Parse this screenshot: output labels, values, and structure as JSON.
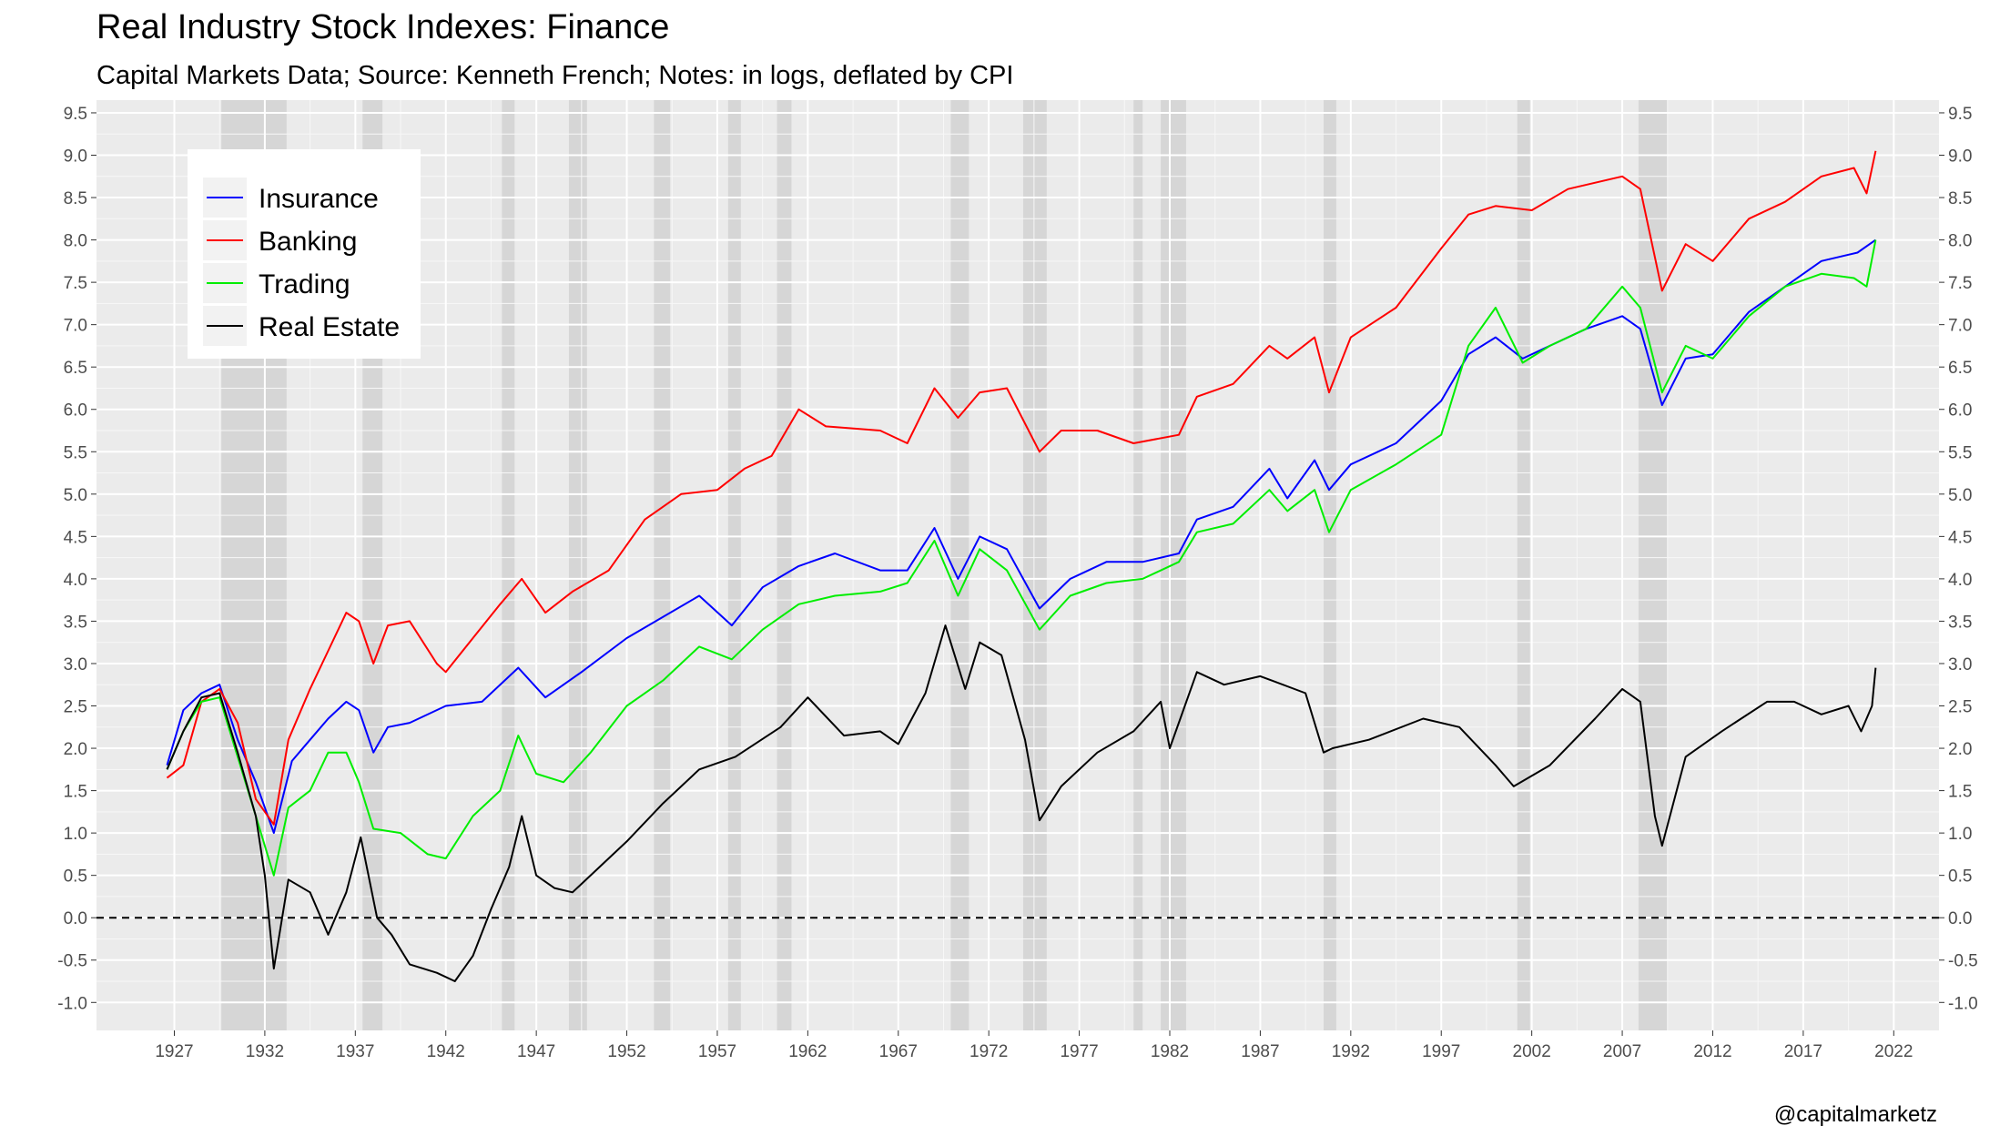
{
  "chart_data": {
    "type": "line",
    "title": "Real Industry Stock Indexes: Finance",
    "subtitle": "Capital Markets Data; Source: Kenneth French; Notes: in logs, deflated by CPI",
    "credit": "@capitalmarketz",
    "xlabel": "",
    "ylabel": "",
    "xlim": [
      1922.7,
      2024.5
    ],
    "ylim": [
      -1.33,
      9.65
    ],
    "x_ticks": [
      "1927",
      "1932",
      "1937",
      "1942",
      "1947",
      "1952",
      "1957",
      "1962",
      "1967",
      "1972",
      "1977",
      "1982",
      "1987",
      "1992",
      "1997",
      "2002",
      "2007",
      "2012",
      "2017",
      "2022"
    ],
    "y_ticks": [
      "-1.0",
      "-0.5",
      "0.0",
      "0.5",
      "1.0",
      "1.5",
      "2.0",
      "2.5",
      "3.0",
      "3.5",
      "4.0",
      "4.5",
      "5.0",
      "5.5",
      "6.0",
      "6.5",
      "7.0",
      "7.5",
      "8.0",
      "8.5",
      "9.0",
      "9.5"
    ],
    "grid": true,
    "y_axis_both_sides": true,
    "reference_line": {
      "y": 0.0,
      "style": "dashed",
      "color": "#000000"
    },
    "recession_shading": [
      [
        1929.6,
        1933.2
      ],
      [
        1937.4,
        1938.5
      ],
      [
        1945.1,
        1945.8
      ],
      [
        1948.8,
        1949.8
      ],
      [
        1953.5,
        1954.4
      ],
      [
        1957.6,
        1958.3
      ],
      [
        1960.3,
        1961.1
      ],
      [
        1969.9,
        1970.9
      ],
      [
        1973.9,
        1975.2
      ],
      [
        1980.0,
        1980.5
      ],
      [
        1981.5,
        1982.9
      ],
      [
        1990.5,
        1991.2
      ],
      [
        2001.2,
        2001.9
      ],
      [
        2007.9,
        2009.5
      ]
    ],
    "legend": {
      "position": "top-left",
      "entries": [
        "Insurance",
        "Banking",
        "Trading",
        "Real Estate"
      ]
    },
    "series": [
      {
        "name": "Insurance",
        "color": "#0000ff",
        "x": [
          1926.6,
          1927.5,
          1928.5,
          1929.5,
          1930.5,
          1931.5,
          1932.5,
          1933.5,
          1934.5,
          1935.5,
          1936.5,
          1937.2,
          1938.0,
          1938.8,
          1940.0,
          1942.0,
          1944.0,
          1946.0,
          1947.5,
          1949.5,
          1952.0,
          1954.0,
          1956.0,
          1957.8,
          1959.5,
          1961.5,
          1963.5,
          1966.0,
          1967.5,
          1969.0,
          1970.3,
          1971.5,
          1973.0,
          1974.8,
          1976.5,
          1978.5,
          1980.5,
          1982.5,
          1983.5,
          1985.5,
          1987.5,
          1988.5,
          1990.0,
          1990.8,
          1992.0,
          1994.5,
          1997.0,
          1998.5,
          2000.0,
          2001.5,
          2003.0,
          2005.0,
          2007.0,
          2008.0,
          2009.2,
          2010.5,
          2012.0,
          2014.0,
          2016.0,
          2018.0,
          2020.0,
          2021.0
        ],
        "y": [
          1.8,
          2.45,
          2.65,
          2.75,
          2.1,
          1.6,
          1.0,
          1.85,
          2.1,
          2.35,
          2.55,
          2.45,
          1.95,
          2.25,
          2.3,
          2.5,
          2.55,
          2.95,
          2.6,
          2.9,
          3.3,
          3.55,
          3.8,
          3.45,
          3.9,
          4.15,
          4.3,
          4.1,
          4.1,
          4.6,
          4.0,
          4.5,
          4.35,
          3.65,
          4.0,
          4.2,
          4.2,
          4.3,
          4.7,
          4.85,
          5.3,
          4.95,
          5.4,
          5.05,
          5.35,
          5.6,
          6.1,
          6.65,
          6.85,
          6.6,
          6.75,
          6.95,
          7.1,
          6.95,
          6.05,
          6.6,
          6.65,
          7.15,
          7.45,
          7.75,
          7.85,
          8.0
        ]
      },
      {
        "name": "Banking",
        "color": "#ff0000",
        "x": [
          1926.6,
          1927.5,
          1928.5,
          1929.5,
          1930.5,
          1931.5,
          1932.5,
          1933.3,
          1934.5,
          1935.5,
          1936.5,
          1937.2,
          1938.0,
          1938.8,
          1940.0,
          1941.5,
          1942.0,
          1943.5,
          1945.0,
          1946.2,
          1947.5,
          1949.0,
          1951.0,
          1953.0,
          1955.0,
          1957.0,
          1958.5,
          1960.0,
          1961.5,
          1963.0,
          1966.0,
          1967.5,
          1969.0,
          1970.3,
          1971.5,
          1973.0,
          1974.8,
          1976.0,
          1978.0,
          1980.0,
          1982.5,
          1983.5,
          1985.5,
          1987.5,
          1988.5,
          1990.0,
          1990.8,
          1992.0,
          1994.5,
          1997.0,
          1998.5,
          2000.0,
          2002.0,
          2004.0,
          2007.0,
          2008.0,
          2009.2,
          2010.5,
          2012.0,
          2014.0,
          2016.0,
          2018.0,
          2019.8,
          2020.5,
          2021.0
        ],
        "y": [
          1.65,
          1.8,
          2.55,
          2.7,
          2.3,
          1.4,
          1.1,
          2.1,
          2.7,
          3.15,
          3.6,
          3.5,
          3.0,
          3.45,
          3.5,
          3.0,
          2.9,
          3.3,
          3.7,
          4.0,
          3.6,
          3.85,
          4.1,
          4.7,
          5.0,
          5.05,
          5.3,
          5.45,
          6.0,
          5.8,
          5.75,
          5.6,
          6.25,
          5.9,
          6.2,
          6.25,
          5.5,
          5.75,
          5.75,
          5.6,
          5.7,
          6.15,
          6.3,
          6.75,
          6.6,
          6.85,
          6.2,
          6.85,
          7.2,
          7.9,
          8.3,
          8.4,
          8.35,
          8.6,
          8.75,
          8.6,
          7.4,
          7.95,
          7.75,
          8.25,
          8.45,
          8.75,
          8.85,
          8.55,
          9.05
        ]
      },
      {
        "name": "Trading",
        "color": "#00ee00",
        "x": [
          1926.6,
          1927.5,
          1928.5,
          1929.5,
          1930.5,
          1931.5,
          1932.5,
          1933.3,
          1934.5,
          1935.5,
          1936.5,
          1937.2,
          1938.0,
          1939.5,
          1941.0,
          1942.0,
          1943.5,
          1945.0,
          1946.0,
          1947.0,
          1948.5,
          1950.0,
          1952.0,
          1954.0,
          1956.0,
          1957.8,
          1959.5,
          1961.5,
          1963.5,
          1966.0,
          1967.5,
          1969.0,
          1970.3,
          1971.5,
          1973.0,
          1974.8,
          1976.5,
          1978.5,
          1980.5,
          1982.5,
          1983.5,
          1985.5,
          1987.5,
          1988.5,
          1990.0,
          1990.8,
          1992.0,
          1994.5,
          1997.0,
          1998.5,
          2000.0,
          2001.5,
          2003.0,
          2005.0,
          2007.0,
          2008.0,
          2009.2,
          2010.5,
          2012.0,
          2014.0,
          2016.0,
          2018.0,
          2019.8,
          2020.5,
          2021.0
        ],
        "y": [
          1.75,
          2.2,
          2.55,
          2.6,
          1.9,
          1.2,
          0.5,
          1.3,
          1.5,
          1.95,
          1.95,
          1.6,
          1.05,
          1.0,
          0.75,
          0.7,
          1.2,
          1.5,
          2.15,
          1.7,
          1.6,
          1.95,
          2.5,
          2.8,
          3.2,
          3.05,
          3.4,
          3.7,
          3.8,
          3.85,
          3.95,
          4.45,
          3.8,
          4.35,
          4.1,
          3.4,
          3.8,
          3.95,
          4.0,
          4.2,
          4.55,
          4.65,
          5.05,
          4.8,
          5.05,
          4.55,
          5.05,
          5.35,
          5.7,
          6.75,
          7.2,
          6.55,
          6.75,
          6.95,
          7.45,
          7.2,
          6.2,
          6.75,
          6.6,
          7.1,
          7.45,
          7.6,
          7.55,
          7.45,
          8.0
        ]
      },
      {
        "name": "Real Estate",
        "color": "#000000",
        "x": [
          1926.6,
          1927.5,
          1928.5,
          1929.5,
          1930.5,
          1931.5,
          1932.0,
          1932.5,
          1933.3,
          1934.5,
          1935.5,
          1936.5,
          1937.3,
          1938.2,
          1939.0,
          1940.0,
          1941.5,
          1942.5,
          1943.5,
          1944.5,
          1945.5,
          1946.2,
          1947.0,
          1948.0,
          1949.0,
          1950.5,
          1952.0,
          1954.0,
          1956.0,
          1958.0,
          1960.5,
          1962.0,
          1964.0,
          1966.0,
          1967.0,
          1968.5,
          1969.6,
          1970.7,
          1971.5,
          1972.7,
          1974.0,
          1974.8,
          1976.0,
          1978.0,
          1980.0,
          1981.5,
          1982.0,
          1983.5,
          1985.0,
          1987.0,
          1989.5,
          1990.5,
          1991.0,
          1993.0,
          1996.0,
          1998.0,
          2000.0,
          2001.0,
          2003.0,
          2005.5,
          2007.0,
          2008.0,
          2008.8,
          2009.2,
          2010.5,
          2012.5,
          2015.0,
          2016.5,
          2018.0,
          2019.5,
          2020.2,
          2020.8,
          2021.0
        ],
        "y": [
          1.75,
          2.2,
          2.6,
          2.65,
          1.95,
          1.2,
          0.5,
          -0.6,
          0.45,
          0.3,
          -0.2,
          0.3,
          0.95,
          0.0,
          -0.2,
          -0.55,
          -0.65,
          -0.75,
          -0.45,
          0.1,
          0.6,
          1.2,
          0.5,
          0.35,
          0.3,
          0.6,
          0.9,
          1.35,
          1.75,
          1.9,
          2.25,
          2.6,
          2.15,
          2.2,
          2.05,
          2.65,
          3.45,
          2.7,
          3.25,
          3.1,
          2.1,
          1.15,
          1.55,
          1.95,
          2.2,
          2.55,
          2.0,
          2.9,
          2.75,
          2.85,
          2.65,
          1.95,
          2.0,
          2.1,
          2.35,
          2.25,
          1.8,
          1.55,
          1.8,
          2.35,
          2.7,
          2.55,
          1.2,
          0.85,
          1.9,
          2.2,
          2.55,
          2.55,
          2.4,
          2.5,
          2.2,
          2.5,
          2.95
        ]
      }
    ]
  }
}
